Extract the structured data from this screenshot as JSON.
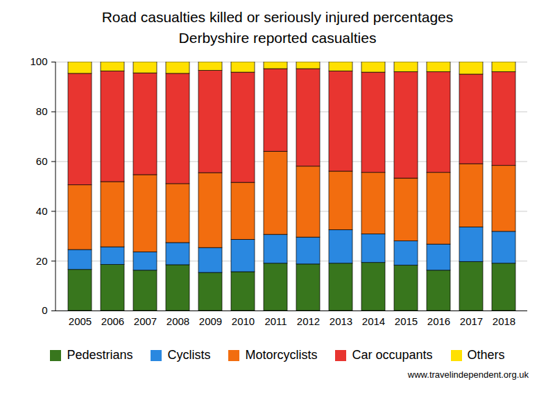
{
  "chart_data": {
    "type": "bar",
    "stacked": true,
    "title": "Road casualties killed or seriously injured percentages",
    "subtitle": "Derbyshire reported casualties",
    "source": "www.travelindependent.org.uk",
    "categories": [
      "2005",
      "2006",
      "2007",
      "2008",
      "2009",
      "2010",
      "2011",
      "2012",
      "2013",
      "2014",
      "2015",
      "2016",
      "2017",
      "2018"
    ],
    "series": [
      {
        "name": "Pedestrians",
        "color": "#38761d",
        "values": [
          16.5,
          18.5,
          16.2,
          18.4,
          15.3,
          15.6,
          19.0,
          18.7,
          19.0,
          19.3,
          18.2,
          16.2,
          19.7,
          19.0
        ]
      },
      {
        "name": "Cyclists",
        "color": "#2a88e0",
        "values": [
          8.0,
          7.1,
          7.4,
          8.9,
          10.0,
          13.0,
          11.6,
          10.8,
          13.5,
          11.5,
          9.8,
          10.5,
          13.9,
          12.8
        ]
      },
      {
        "name": "Motorcyclists",
        "color": "#f26d0f",
        "values": [
          26.0,
          26.2,
          31.0,
          23.7,
          30.1,
          22.9,
          33.4,
          28.5,
          23.5,
          24.7,
          25.2,
          28.8,
          25.4,
          26.5
        ]
      },
      {
        "name": "Car occupants",
        "color": "#e83530",
        "values": [
          44.8,
          44.5,
          40.9,
          44.3,
          41.1,
          44.3,
          33.2,
          39.2,
          40.3,
          40.3,
          42.8,
          40.5,
          36.0,
          37.7
        ]
      },
      {
        "name": "Others",
        "color": "#ffe000",
        "values": [
          4.7,
          3.7,
          4.5,
          4.7,
          3.5,
          4.2,
          2.8,
          2.8,
          3.7,
          4.2,
          4.0,
          4.0,
          5.0,
          4.0
        ]
      }
    ],
    "ylim": [
      0,
      100
    ],
    "yticks": [
      0,
      20,
      40,
      60,
      80,
      100
    ],
    "grid": true,
    "legend": "bottom"
  }
}
